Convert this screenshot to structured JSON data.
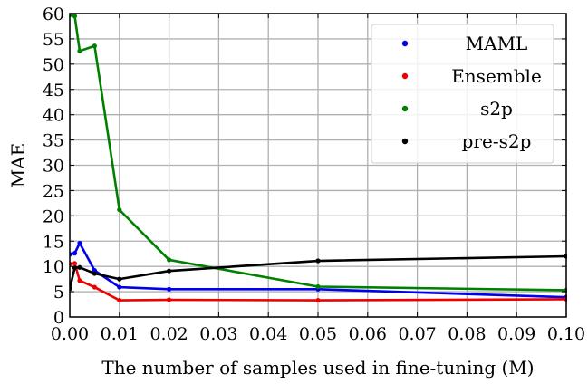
{
  "chart_data": {
    "type": "line",
    "title": "",
    "xlabel": "The number of samples used in fine-tuning (M)",
    "ylabel": "MAE",
    "xlim": [
      0.0,
      0.1
    ],
    "ylim": [
      0,
      60
    ],
    "xticks": [
      0.0,
      0.01,
      0.02,
      0.03,
      0.04,
      0.05,
      0.06,
      0.07,
      0.08,
      0.09,
      0.1
    ],
    "xtick_labels": [
      "0.00",
      "0.01",
      "0.02",
      "0.03",
      "0.04",
      "0.05",
      "0.06",
      "0.07",
      "0.08",
      "0.09",
      "0.10"
    ],
    "yticks": [
      0,
      5,
      10,
      15,
      20,
      25,
      30,
      35,
      40,
      45,
      50,
      55,
      60
    ],
    "ytick_labels": [
      "0",
      "5",
      "10",
      "15",
      "20",
      "25",
      "30",
      "35",
      "40",
      "45",
      "50",
      "55",
      "60"
    ],
    "grid": true,
    "legend_position": "top-right",
    "series": [
      {
        "name": "MAML",
        "color": "#0000ee",
        "x": [
          0.0,
          0.001,
          0.002,
          0.005,
          0.01,
          0.02,
          0.05,
          0.1
        ],
        "y": [
          12.4,
          12.6,
          14.6,
          9.2,
          5.9,
          5.5,
          5.5,
          3.9
        ]
      },
      {
        "name": "Ensemble",
        "color": "#ee0000",
        "x": [
          0.0,
          0.001,
          0.002,
          0.005,
          0.01,
          0.02,
          0.05,
          0.1
        ],
        "y": [
          10.5,
          10.6,
          7.2,
          5.9,
          3.3,
          3.4,
          3.3,
          3.5
        ]
      },
      {
        "name": "s2p",
        "color": "#008000",
        "x": [
          0.0,
          0.001,
          0.002,
          0.005,
          0.01,
          0.02,
          0.05,
          0.1
        ],
        "y": [
          59.7,
          59.5,
          52.6,
          53.6,
          21.2,
          11.3,
          6.0,
          5.3
        ]
      },
      {
        "name": "pre-s2p",
        "color": "#000000",
        "x": [
          0.0,
          0.001,
          0.002,
          0.005,
          0.01,
          0.02,
          0.05,
          0.1
        ],
        "y": [
          5.6,
          9.7,
          9.8,
          8.6,
          7.5,
          9.1,
          11.1,
          12.0
        ]
      }
    ]
  }
}
